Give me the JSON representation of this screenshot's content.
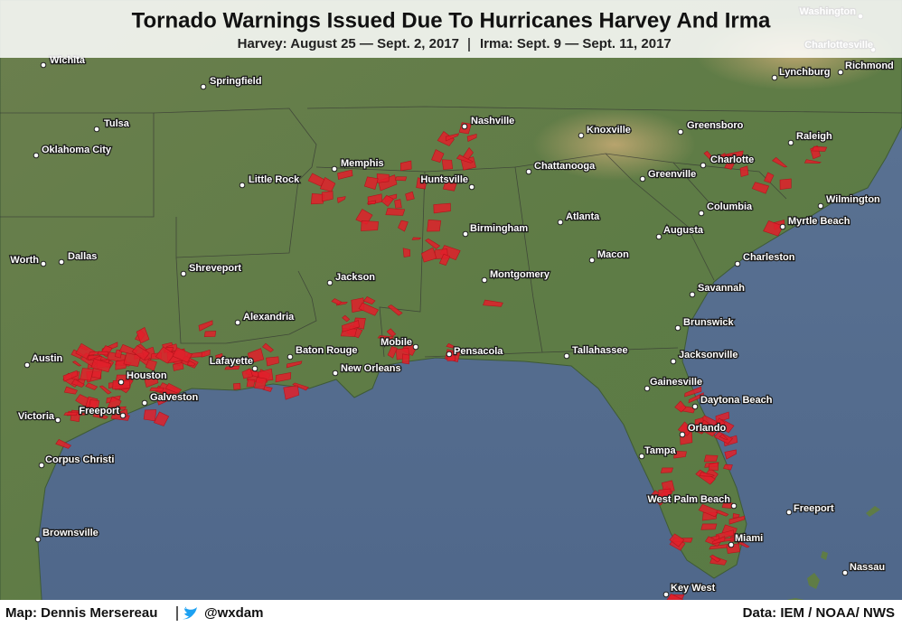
{
  "header": {
    "title": "Tornado Warnings Issued Due To Hurricanes Harvey And Irma",
    "subtitle": [
      "Harvey: August 25 — Sept. 2, 2017",
      "Irma: Sept. 9 — Sept. 11, 2017"
    ]
  },
  "cities": [
    "Wichita",
    "Springfield",
    "Tulsa",
    "Oklahoma City",
    "Little Rock",
    "Memphis",
    "Nashville",
    "Knoxville",
    "Greensboro",
    "Raleigh",
    "Lynchburg",
    "Richmond",
    "Washington",
    "Charlottesville",
    "Charlotte",
    "Chattanooga",
    "Huntsville",
    "Greenville",
    "Wilmington",
    "Columbia",
    "Myrtle Beach",
    "Atlanta",
    "Birmingham",
    "Augusta",
    "Dallas",
    "Worth",
    "Shreveport",
    "Macon",
    "Charleston",
    "Montgomery",
    "Jackson",
    "Savannah",
    "Alexandria",
    "Brunswick",
    "Baton Rouge",
    "Mobile",
    "Pensacola",
    "Tallahassee",
    "Jacksonville",
    "Austin",
    "Lafayette",
    "New Orleans",
    "Houston",
    "Gainesville",
    "Galveston",
    "Daytona Beach",
    "Freeport",
    "Victoria",
    "Orlando",
    "Tampa",
    "Corpus Christi",
    "West Palm Beach",
    "Freeport",
    "Brownsville",
    "Miami",
    "Nassau",
    "Key West"
  ],
  "footer": {
    "credit": "Map: Dennis Mersereau",
    "handle": "@wxdam",
    "source": "Data: IEM / NOAA/ NWS"
  }
}
